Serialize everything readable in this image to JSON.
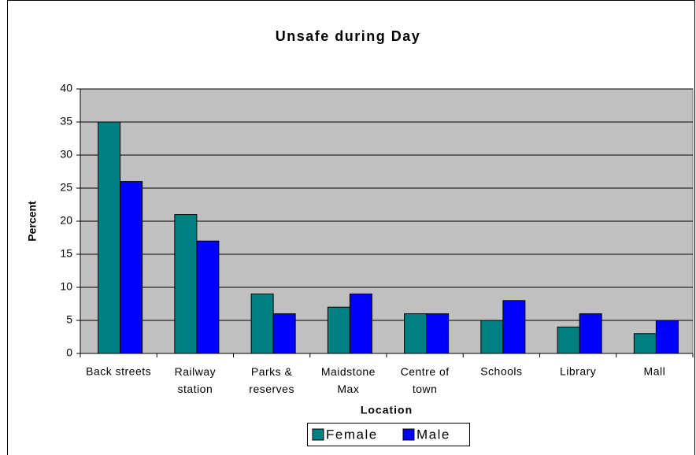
{
  "chart_data": {
    "type": "bar",
    "title": "Unsafe during Day",
    "x_label": "Location",
    "y_label": "Percent",
    "categories": [
      "Back streets",
      "Railway station",
      "Parks & reserves",
      "Maidstone Max",
      "Centre of town",
      "Schools",
      "Library",
      "Mall"
    ],
    "series": [
      {
        "name": "Female",
        "color": "#008080",
        "values": [
          35,
          21,
          9,
          7,
          6,
          5,
          4,
          3
        ]
      },
      {
        "name": "Male",
        "color": "#0000ff",
        "values": [
          26,
          17,
          6,
          9,
          6,
          8,
          6,
          5
        ]
      }
    ],
    "ylim": [
      0,
      40
    ],
    "yticks": [
      0,
      5,
      10,
      15,
      20,
      25,
      30,
      35,
      40
    ],
    "grid": true,
    "legend": "bottom"
  }
}
